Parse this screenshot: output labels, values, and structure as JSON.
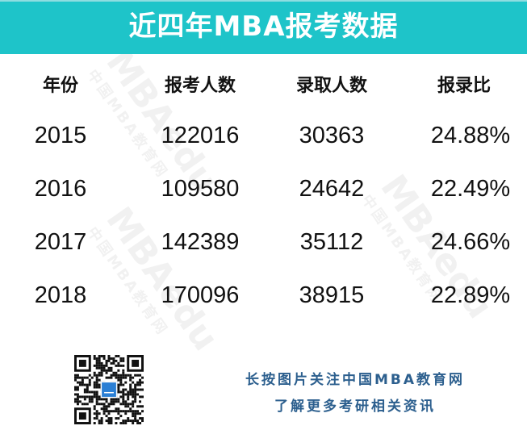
{
  "title": "近四年MBA报考数据",
  "watermark": {
    "brand": "MBAedu",
    "site": "中国MBA教育网"
  },
  "table": {
    "headers": [
      "年份",
      "报考人数",
      "录取人数",
      "报录比"
    ],
    "rows": [
      [
        "2015",
        "122016",
        "30363",
        "24.88%"
      ],
      [
        "2016",
        "109580",
        "24642",
        "22.49%"
      ],
      [
        "2017",
        "142389",
        "35112",
        "24.66%"
      ],
      [
        "2018",
        "170096",
        "38915",
        "22.89%"
      ]
    ]
  },
  "footer": {
    "line1": "长按图片关注中国MBA教育网",
    "line2": "了解更多考研相关资讯",
    "qr_icon": "qr-code"
  },
  "colors": {
    "banner": "#1ec4c9",
    "promo_text": "#2c5f8e",
    "qr_logo": "#2b7fd4"
  }
}
